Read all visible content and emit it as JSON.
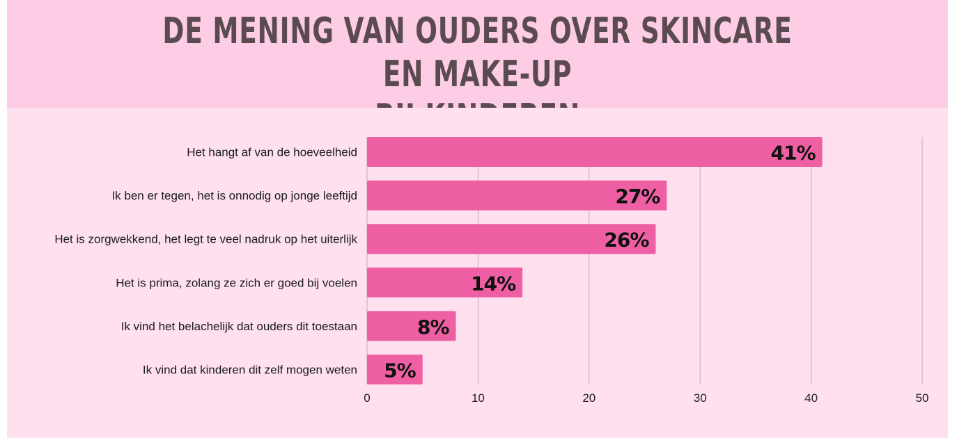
{
  "chart_data": {
    "type": "bar",
    "orientation": "horizontal",
    "title": "DE MENING VAN OUDERS OVER SKINCARE EN MAKE-UP BIJ KINDEREN",
    "title_lines": [
      "DE MENING VAN OUDERS OVER SKINCARE EN MAKE-UP",
      "BIJ KINDEREN"
    ],
    "categories": [
      "Het hangt af van de hoeveelheid",
      "Ik ben er tegen, het is onnodig op jonge leeftijd",
      "Het is zorgwekkend, het legt te veel nadruk op het uiterlijk",
      "Het is prima, zolang ze zich er goed bij voelen",
      "Ik vind het belachelijk dat ouders dit toestaan",
      "Ik vind dat kinderen dit zelf mogen weten"
    ],
    "values": [
      41,
      27,
      26,
      14,
      8,
      5
    ],
    "data_labels": [
      "41%",
      "27%",
      "26%",
      "14%",
      "8%",
      "5%"
    ],
    "xlabel": "",
    "ylabel": "",
    "xlim": [
      0,
      50
    ],
    "x_ticks": [
      0,
      10,
      20,
      30,
      40,
      50
    ],
    "grid": true,
    "legend": "none",
    "colors": {
      "bar": "#ee60a3",
      "title_band": "#fccde4",
      "panel": "#fee0ef",
      "title_text": "#5c4a51",
      "grid": "#c9a9b8"
    }
  }
}
